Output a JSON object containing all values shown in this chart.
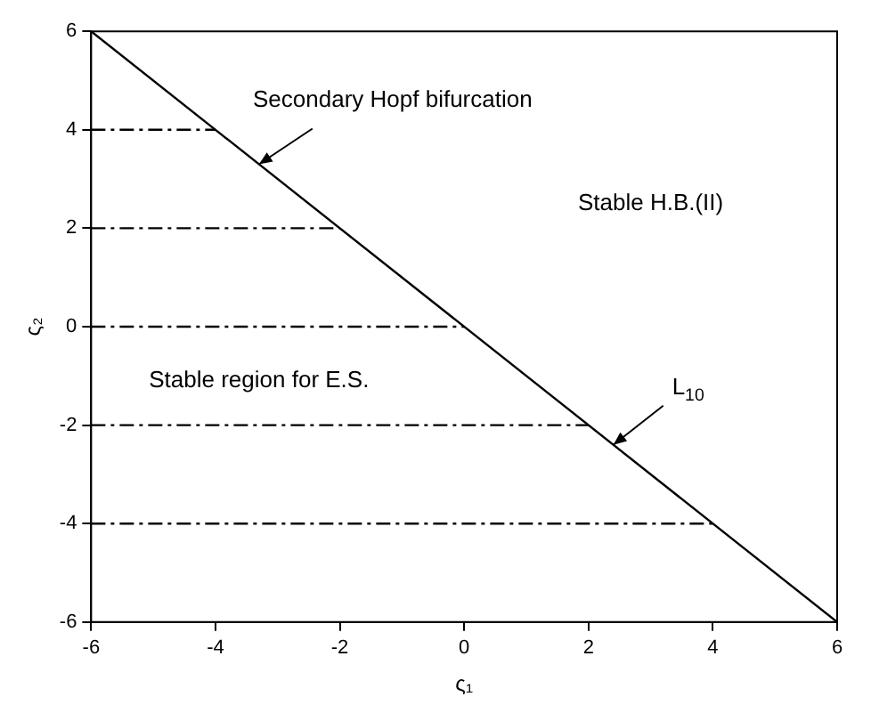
{
  "chart_data": {
    "type": "line",
    "xlabel": "ς₁",
    "ylabel": "ς₂",
    "xlim": [
      -6,
      6
    ],
    "ylim": [
      -6,
      6
    ],
    "xticks": [
      -6,
      -4,
      -2,
      0,
      2,
      4,
      6
    ],
    "yticks": [
      -6,
      -4,
      -2,
      0,
      2,
      4,
      6
    ],
    "grid": false,
    "series": [
      {
        "color": "#000000",
        "x": [
          -6,
          6
        ],
        "values": [
          6,
          -6
        ],
        "line_style": "solid"
      },
      {
        "color": "#000000",
        "x": [
          -6,
          -4
        ],
        "values": [
          4,
          4
        ],
        "line_style": "dashed"
      },
      {
        "color": "#000000",
        "x": [
          -6,
          -2
        ],
        "values": [
          2,
          2
        ],
        "line_style": "dashed"
      },
      {
        "color": "#000000",
        "x": [
          -6,
          0
        ],
        "values": [
          0,
          0
        ],
        "line_style": "dashed"
      },
      {
        "color": "#000000",
        "x": [
          -6,
          2
        ],
        "values": [
          -2,
          -2
        ],
        "line_style": "dashed"
      },
      {
        "color": "#000000",
        "x": [
          -6,
          4
        ],
        "values": [
          -4,
          -4
        ],
        "line_style": "dashed"
      }
    ],
    "annotations": [
      {
        "text": "Secondary Hopf bifurcation",
        "x": -3.3,
        "y": 3.3
      },
      "Stable H.B.(II)",
      "Stable region for E.S.",
      {
        "text": "L$_{10}$",
        "x": 2.4,
        "y": -2.4
      }
    ]
  }
}
